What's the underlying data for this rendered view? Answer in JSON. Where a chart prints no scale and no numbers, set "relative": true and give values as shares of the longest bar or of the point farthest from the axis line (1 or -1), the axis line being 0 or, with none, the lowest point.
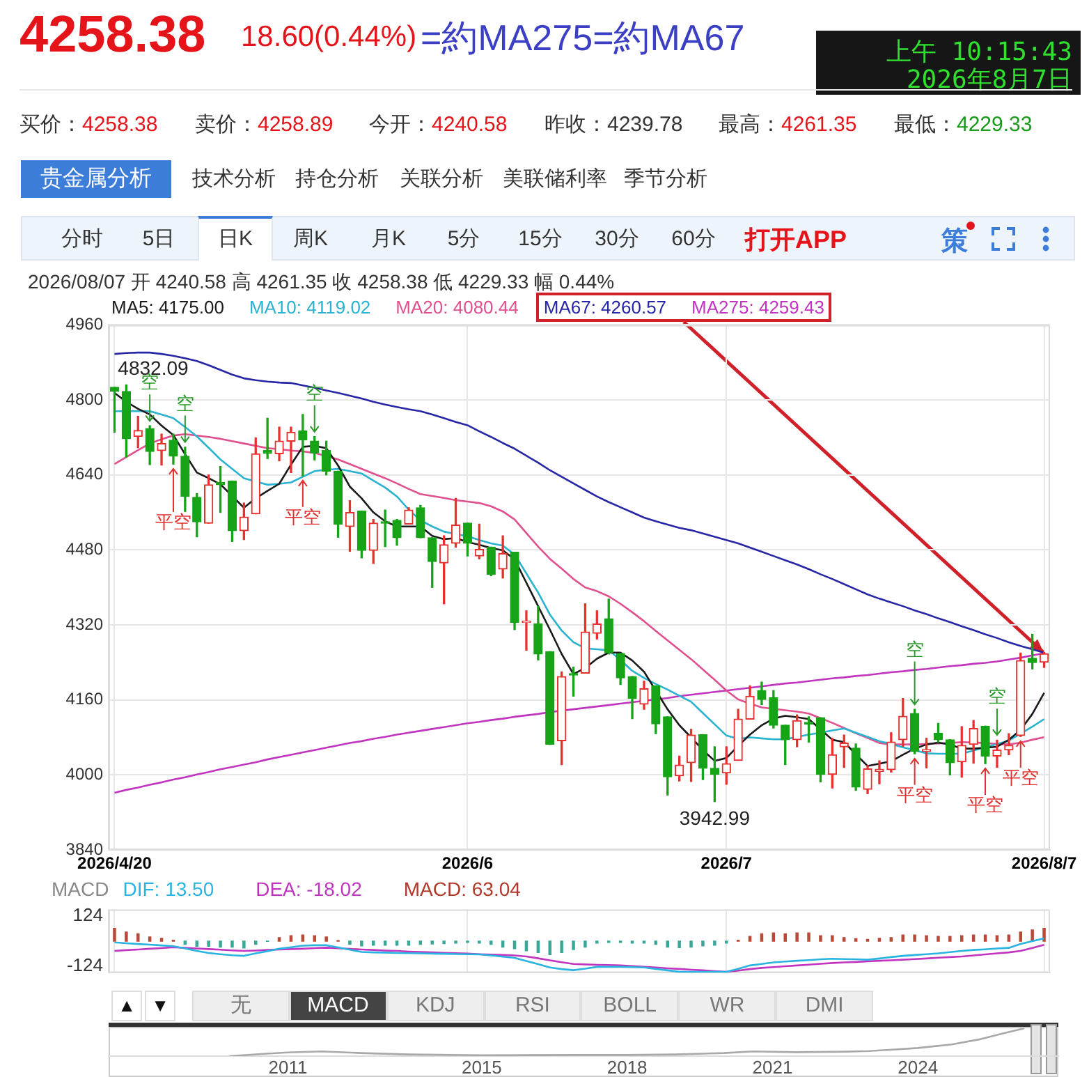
{
  "chart_data": [
    {
      "type": "other",
      "title": "4258.38",
      "subtitle": "18.60(0.44%)",
      "annotations": [
        "=約MA275=約MA67",
        "上午 10:15:43",
        "2026年8月7日",
        "买价：",
        "4258.38",
        "卖价：",
        "4258.89",
        "今开：",
        "4240.58",
        "昨收：",
        "4239.78",
        "最高：",
        "4261.35",
        "最低：",
        "4229.33",
        "贵金属分析",
        "技术分析",
        "持仓分析",
        "关联分析",
        "美联储利率",
        "季节分析",
        "分时",
        "5日",
        "日K",
        "周K",
        "月K",
        "5分",
        "15分",
        "30分",
        "60分",
        "打开APP",
        "策"
      ]
    },
    {
      "type": "candlestick",
      "subtitle": "2026/08/07 开 4240.58 高 4261.35 收 4258.38 低 4229.33 幅 0.44%",
      "categories": [
        "2026/4/20",
        null,
        null,
        null,
        null,
        null,
        null,
        null,
        null,
        null,
        null,
        null,
        null,
        null,
        null,
        null,
        null,
        null,
        null,
        null,
        null,
        null,
        null,
        null,
        null,
        null,
        null,
        null,
        null,
        null,
        "2026/6",
        null,
        null,
        null,
        null,
        null,
        null,
        null,
        null,
        null,
        null,
        null,
        null,
        null,
        null,
        null,
        null,
        null,
        null,
        null,
        null,
        null,
        "2026/7",
        null,
        null,
        null,
        null,
        null,
        null,
        null,
        null,
        null,
        null,
        null,
        null,
        null,
        null,
        null,
        null,
        null,
        null,
        null,
        null,
        null,
        null,
        null,
        null,
        null,
        null,
        "2026/8/7"
      ],
      "ohlc": [
        [
          4827,
          4827,
          4731,
          4818
        ],
        [
          4818,
          4832.09,
          4678,
          4717
        ],
        [
          4722,
          4765,
          4698,
          4735
        ],
        [
          4739,
          4745,
          4662,
          4690
        ],
        [
          4692,
          4727,
          4661,
          4707
        ],
        [
          4714,
          4727,
          4663,
          4680
        ],
        [
          4680,
          4699,
          4562,
          4594
        ],
        [
          4592,
          4600,
          4508,
          4540
        ],
        [
          4537,
          4640,
          4537,
          4619
        ],
        [
          4624,
          4658,
          4560,
          4619
        ],
        [
          4627,
          4627,
          4498,
          4521
        ],
        [
          4521,
          4580,
          4502,
          4550
        ],
        [
          4557,
          4719,
          4557,
          4685
        ],
        [
          4692,
          4761,
          4675,
          4686
        ],
        [
          4685,
          4742,
          4670,
          4712
        ],
        [
          4712,
          4742,
          4645,
          4731
        ],
        [
          4734,
          4769,
          4638,
          4715
        ],
        [
          4712,
          4722,
          4672,
          4687
        ],
        [
          4692,
          4712,
          4640,
          4648
        ],
        [
          4648,
          4648,
          4507,
          4535
        ],
        [
          4530,
          4585,
          4477,
          4560
        ],
        [
          4563,
          4563,
          4463,
          4479
        ],
        [
          4479,
          4545,
          4451,
          4537
        ],
        [
          4540,
          4565,
          4487,
          4537
        ],
        [
          4543,
          4545,
          4490,
          4506
        ],
        [
          4535,
          4570,
          4535,
          4565
        ],
        [
          4570,
          4575,
          4506,
          4506
        ],
        [
          4506,
          4506,
          4400,
          4455
        ],
        [
          4452,
          4510,
          4365,
          4491
        ],
        [
          4494,
          4590,
          4486,
          4533
        ],
        [
          4537,
          4537,
          4467,
          4494
        ],
        [
          4467,
          4535,
          4461,
          4481
        ],
        [
          4486,
          4486,
          4425,
          4428
        ],
        [
          4439,
          4510,
          4420,
          4472
        ],
        [
          4475,
          4475,
          4310,
          4325
        ],
        [
          4325,
          4350,
          4266,
          4327
        ],
        [
          4322,
          4360,
          4245,
          4258
        ],
        [
          4263,
          4263,
          4065,
          4065
        ],
        [
          4073,
          4220,
          4022,
          4210
        ],
        [
          4215,
          4230,
          4168,
          4213
        ],
        [
          4217,
          4365,
          4217,
          4305
        ],
        [
          4302,
          4350,
          4290,
          4322
        ],
        [
          4333,
          4375,
          4258,
          4261
        ],
        [
          4259,
          4259,
          4193,
          4207
        ],
        [
          4210,
          4210,
          4120,
          4163
        ],
        [
          4151,
          4200,
          4140,
          4184
        ],
        [
          4190,
          4190,
          4088,
          4109
        ],
        [
          4124,
          4124,
          3957,
          3996
        ],
        [
          3998,
          4040,
          3987,
          4021
        ],
        [
          4026,
          4097,
          3986,
          4085
        ],
        [
          4086,
          4086,
          3990,
          4014
        ],
        [
          4014,
          4060,
          3942.99,
          4001
        ],
        [
          4004,
          4060,
          3980,
          4024
        ],
        [
          4031,
          4140,
          4031,
          4119
        ],
        [
          4119,
          4190,
          4119,
          4168
        ],
        [
          4180,
          4198,
          4150,
          4161
        ],
        [
          4165,
          4180,
          4100,
          4106
        ],
        [
          4106,
          4106,
          4022,
          4075
        ],
        [
          4075,
          4128,
          4060,
          4116
        ],
        [
          4112,
          4124,
          4070,
          4108
        ],
        [
          4122,
          4122,
          3985,
          4001
        ],
        [
          4001,
          4078,
          3972,
          4043
        ],
        [
          4060,
          4085,
          4016,
          4068
        ],
        [
          4057,
          4066,
          3967,
          3974
        ],
        [
          3969,
          4020,
          3960,
          4013
        ],
        [
          4007,
          4030,
          3981,
          4012
        ],
        [
          4011,
          4090,
          4006,
          4070
        ],
        [
          4075,
          4163,
          4061,
          4125
        ],
        [
          4131,
          4140,
          4045,
          4050
        ],
        [
          4050,
          4078,
          4015,
          4054
        ],
        [
          4089,
          4110,
          4070,
          4075
        ],
        [
          4075,
          4075,
          4000,
          4026
        ],
        [
          4028,
          4103,
          3995,
          4063
        ],
        [
          4065,
          4116,
          4025,
          4099
        ],
        [
          4104,
          4104,
          4024,
          4040
        ],
        [
          4040,
          4074,
          4016,
          4053
        ],
        [
          4053,
          4088,
          4043,
          4063
        ],
        [
          4084,
          4260,
          4082,
          4244
        ],
        [
          4249,
          4300,
          4226,
          4239.78
        ],
        [
          4240.58,
          4261.35,
          4229.33,
          4258.38
        ]
      ],
      "colors": [
        "#17a317",
        "#17a317",
        "#e8312f",
        "#17a317",
        "#e8312f",
        "#17a317",
        "#17a317",
        "#17a317",
        "#e8312f",
        "#17a317",
        "#17a317",
        "#e8312f",
        "#e8312f",
        "#17a317",
        "#e8312f",
        "#e8312f",
        "#17a317",
        "#17a317",
        "#17a317",
        "#17a317",
        "#e8312f",
        "#17a317",
        "#e8312f",
        "#17a317",
        "#17a317",
        "#e8312f",
        "#17a317",
        "#17a317",
        "#e8312f",
        "#e8312f",
        "#17a317",
        "#e8312f",
        "#17a317",
        "#e8312f",
        "#17a317",
        "#e8312f",
        "#17a317",
        "#17a317",
        "#e8312f",
        "#17a317",
        "#e8312f",
        "#e8312f",
        "#17a317",
        "#17a317",
        "#17a317",
        "#e8312f",
        "#17a317",
        "#17a317",
        "#e8312f",
        "#e8312f",
        "#17a317",
        "#17a317",
        "#e8312f",
        "#e8312f",
        "#e8312f",
        "#17a317",
        "#17a317",
        "#17a317",
        "#e8312f",
        "#17a317",
        "#17a317",
        "#e8312f",
        "#e8312f",
        "#17a317",
        "#e8312f",
        "#e8312f",
        "#e8312f",
        "#e8312f",
        "#17a317",
        "#e8312f",
        "#17a317",
        "#17a317",
        "#e8312f",
        "#e8312f",
        "#17a317",
        "#e8312f",
        "#e8312f",
        "#e8312f",
        "#17a317",
        "#e8312f"
      ],
      "series": [
        {
          "name": "MA5: 4175.00",
          "type": "line",
          "color": "#1a1a1a",
          "values": [
            4815,
            4796,
            4781,
            4769,
            4745,
            4725,
            4684,
            4645,
            4633,
            4620,
            4595,
            4570,
            4590,
            4606,
            4621,
            4662,
            4700,
            4702,
            4697,
            4660,
            4615,
            4590,
            4560,
            4541,
            4530,
            4530,
            4530,
            4510,
            4503,
            4505,
            4497,
            4491,
            4484,
            4479,
            4460,
            4410,
            4360,
            4310,
            4258,
            4215,
            4228,
            4248,
            4261,
            4261,
            4244,
            4220,
            4180,
            4140,
            4106,
            4080,
            4053,
            4030,
            4036,
            4062,
            4086,
            4106,
            4120,
            4126,
            4123,
            4119,
            4097,
            4075,
            4070,
            4044,
            4019,
            4024,
            4029,
            4043,
            4056,
            4065,
            4069,
            4065,
            4056,
            4056,
            4058,
            4060,
            4075,
            4096,
            4130,
            4175.0
          ]
        },
        {
          "name": "MA10: 4119.02",
          "type": "line",
          "color": "#29b3d1",
          "values": [
            4776,
            4776,
            4776,
            4776,
            4769,
            4761,
            4742,
            4722,
            4698,
            4673,
            4653,
            4633,
            4626,
            4619,
            4621,
            4624,
            4636,
            4648,
            4651,
            4653,
            4648,
            4643,
            4628,
            4613,
            4594,
            4566,
            4543,
            4530,
            4519,
            4514,
            4509,
            4501,
            4494,
            4489,
            4470,
            4430,
            4389,
            4342,
            4308,
            4283,
            4270,
            4268,
            4266,
            4245,
            4222,
            4207,
            4194,
            4182,
            4169,
            4156,
            4132,
            4108,
            4084,
            4077,
            4080,
            4078,
            4076,
            4076,
            4081,
            4086,
            4090,
            4095,
            4099,
            4090,
            4081,
            4072,
            4066,
            4059,
            4053,
            4046,
            4045,
            4045,
            4045,
            4052,
            4059,
            4066,
            4073,
            4088,
            4103,
            4119.02
          ]
        },
        {
          "name": "MA20: 4080.44",
          "type": "line",
          "color": "#e0508e",
          "values": [
            4663,
            4678,
            4693,
            4707,
            4716,
            4724,
            4727,
            4724,
            4721,
            4717,
            4712,
            4707,
            4702,
            4697,
            4695,
            4692,
            4690,
            4687,
            4680,
            4673,
            4663,
            4653,
            4643,
            4633,
            4622,
            4610,
            4599,
            4595,
            4591,
            4586,
            4583,
            4580,
            4573,
            4562,
            4545,
            4516,
            4487,
            4461,
            4440,
            4418,
            4400,
            4392,
            4381,
            4365,
            4347,
            4328,
            4307,
            4287,
            4267,
            4247,
            4225,
            4203,
            4180,
            4161,
            4152,
            4144,
            4141,
            4138,
            4135,
            4131,
            4121,
            4111,
            4100,
            4089,
            4079,
            4068,
            4065,
            4065,
            4065,
            4066,
            4067,
            4068,
            4070,
            4069,
            4068,
            4066,
            4065,
            4069,
            4075,
            4080.44
          ]
        },
        {
          "name": "MA67: 4260.57",
          "type": "line",
          "color": "#2626a6",
          "values": [
            4898,
            4900,
            4901,
            4901,
            4898,
            4894,
            4889,
            4883,
            4874,
            4864,
            4854,
            4846,
            4842,
            4839,
            4837,
            4836,
            4831,
            4826,
            4820,
            4815,
            4809,
            4803,
            4796,
            4790,
            4785,
            4780,
            4776,
            4769,
            4761,
            4753,
            4746,
            4733,
            4721,
            4708,
            4696,
            4681,
            4666,
            4650,
            4636,
            4622,
            4608,
            4594,
            4582,
            4571,
            4560,
            4549,
            4541,
            4534,
            4527,
            4522,
            4515,
            4508,
            4501,
            4494,
            4485,
            4476,
            4467,
            4458,
            4449,
            4439,
            4428,
            4418,
            4407,
            4396,
            4385,
            4376,
            4368,
            4360,
            4351,
            4343,
            4334,
            4326,
            4317,
            4309,
            4300,
            4292,
            4283,
            4275,
            4268,
            4260.57
          ]
        },
        {
          "name": "MA275: 4259.43",
          "type": "line",
          "color": "#c034c0",
          "values": [
            3962,
            3968,
            3973,
            3979,
            3984,
            3990,
            3995,
            4001,
            4006,
            4012,
            4017,
            4022,
            4027,
            4033,
            4038,
            4043,
            4048,
            4053,
            4058,
            4063,
            4068,
            4072,
            4077,
            4081,
            4086,
            4090,
            4094,
            4098,
            4102,
            4106,
            4110,
            4113,
            4117,
            4120,
            4124,
            4127,
            4130,
            4134,
            4137,
            4140,
            4143,
            4146,
            4149,
            4152,
            4155,
            4158,
            4161,
            4164,
            4168,
            4171,
            4174,
            4177,
            4180,
            4183,
            4186,
            4189,
            4192,
            4195,
            4197,
            4200,
            4203,
            4206,
            4208,
            4211,
            4213,
            4216,
            4219,
            4221,
            4224,
            4226,
            4229,
            4232,
            4234,
            4237,
            4239,
            4242,
            4246,
            4250,
            4255,
            4259.43
          ]
        }
      ],
      "ylim": [
        3840,
        4960
      ],
      "yticks": [
        3840,
        4000,
        4160,
        4320,
        4480,
        4640,
        4800,
        4960
      ],
      "grid": true,
      "legend": "top left",
      "marker": "none",
      "annotations": [
        "4832.09",
        {
          "text": "3942.99",
          "y": 3942.99
        },
        {
          "text": "空",
          "y": 4755
        },
        {
          "text": "空",
          "y": 4710
        },
        {
          "text": "空",
          "y": 4732
        },
        {
          "text": "空",
          "y": 4150
        },
        {
          "text": "空",
          "y": 4085
        },
        {
          "text": "平空",
          "y": 4653
        },
        {
          "text": "平空",
          "y": 4628
        },
        {
          "text": "平空",
          "y": 4035
        },
        {
          "text": "平空",
          "y": 4014
        },
        {
          "text": "平空",
          "y": 4072
        }
      ]
    },
    {
      "type": "bar",
      "legend_title": "MACD",
      "categories": [
        "2026/4/20",
        null,
        null,
        null,
        null,
        null,
        null,
        null,
        null,
        null,
        null,
        null,
        null,
        null,
        null,
        null,
        null,
        null,
        null,
        null,
        null,
        null,
        null,
        null,
        null,
        null,
        null,
        null,
        null,
        null,
        "2026/6",
        null,
        null,
        null,
        null,
        null,
        null,
        null,
        null,
        null,
        null,
        null,
        null,
        null,
        null,
        null,
        null,
        null,
        null,
        null,
        null,
        null,
        "2026/7",
        null,
        null,
        null,
        null,
        null,
        null,
        null,
        null,
        null,
        null,
        null,
        null,
        null,
        null,
        null,
        null,
        null,
        null,
        null,
        null,
        null,
        null,
        null,
        null,
        null,
        null,
        "2026/8/7"
      ],
      "series": [
        {
          "name": "DIF: 13.50",
          "type": "line",
          "color": "#29b3e0",
          "values": [
            -6,
            -10,
            -14,
            -17,
            -21,
            -25,
            -36,
            -48,
            -58,
            -64,
            -69,
            -72,
            -60,
            -49,
            -37,
            -30,
            -22,
            -20,
            -20,
            -31,
            -42,
            -53,
            -55,
            -56,
            -58,
            -59,
            -60,
            -61,
            -62,
            -63,
            -64,
            -65,
            -70,
            -76,
            -82,
            -97,
            -113,
            -129,
            -137,
            -142,
            -135,
            -126,
            -126,
            -126,
            -127,
            -129,
            -136,
            -143,
            -150,
            -150,
            -150,
            -150,
            -150,
            -136,
            -119,
            -112,
            -104,
            -100,
            -96,
            -93,
            -89,
            -86,
            -88,
            -89,
            -91,
            -85,
            -78,
            -72,
            -68,
            -64,
            -60,
            -54,
            -48,
            -43,
            -40,
            -36,
            -33,
            -14,
            0,
            13.5
          ]
        },
        {
          "name": "DEA: -18.02",
          "type": "line",
          "color": "#c034c0",
          "values": [
            -48,
            -44,
            -41,
            -37,
            -34,
            -30,
            -33,
            -36,
            -39,
            -42,
            -45,
            -48,
            -46,
            -43,
            -41,
            -39,
            -37,
            -34,
            -32,
            -35,
            -38,
            -41,
            -43,
            -46,
            -48,
            -51,
            -53,
            -55,
            -57,
            -59,
            -61,
            -64,
            -66,
            -68,
            -70,
            -75,
            -84,
            -94,
            -103,
            -112,
            -114,
            -116,
            -117,
            -119,
            -122,
            -126,
            -129,
            -133,
            -136,
            -140,
            -143,
            -147,
            -150,
            -144,
            -137,
            -131,
            -127,
            -123,
            -119,
            -115,
            -111,
            -107,
            -104,
            -102,
            -99,
            -96,
            -94,
            -91,
            -88,
            -85,
            -81,
            -78,
            -75,
            -70,
            -65,
            -60,
            -55,
            -48,
            -33,
            -18.02
          ]
        },
        {
          "name": "MACD: 63.04",
          "type": "bar",
          "color": "#b23a2a",
          "values": [
            63,
            45,
            36,
            21,
            14,
            5,
            -16,
            -25,
            -25,
            -29,
            -29,
            -34,
            -16,
            -1,
            17,
            27,
            30,
            27,
            21,
            3,
            -16,
            -23,
            -20,
            -20,
            -20,
            -20,
            -16,
            -14,
            -12,
            -10,
            -6,
            -10,
            -16,
            -29,
            -37,
            -47,
            -56,
            -66,
            -56,
            -41,
            -29,
            -10,
            -6,
            -6,
            -10,
            -10,
            -16,
            -29,
            -32,
            -29,
            -23,
            -20,
            -10,
            5,
            23,
            36,
            40,
            36,
            40,
            40,
            27,
            27,
            17,
            12,
            9,
            14,
            17,
            30,
            30,
            27,
            23,
            23,
            27,
            30,
            30,
            27,
            30,
            45,
            55,
            63.04
          ],
          "colors": [
            "#b84a3a",
            "#b84a3a",
            "#b84a3a",
            "#b84a3a",
            "#b84a3a",
            "#b84a3a",
            "#3aa898",
            "#3aa898",
            "#3aa898",
            "#3aa898",
            "#3aa898",
            "#3aa898",
            "#3aa898",
            "#3aa898",
            "#b84a3a",
            "#b84a3a",
            "#b84a3a",
            "#b84a3a",
            "#b84a3a",
            "#b84a3a",
            "#3aa898",
            "#3aa898",
            "#3aa898",
            "#3aa898",
            "#3aa898",
            "#3aa898",
            "#3aa898",
            "#3aa898",
            "#3aa898",
            "#3aa898",
            "#3aa898",
            "#3aa898",
            "#3aa898",
            "#3aa898",
            "#3aa898",
            "#3aa898",
            "#3aa898",
            "#3aa898",
            "#3aa898",
            "#3aa898",
            "#3aa898",
            "#3aa898",
            "#3aa898",
            "#3aa898",
            "#3aa898",
            "#3aa898",
            "#3aa898",
            "#3aa898",
            "#3aa898",
            "#3aa898",
            "#3aa898",
            "#3aa898",
            "#3aa898",
            "#b84a3a",
            "#b84a3a",
            "#b84a3a",
            "#b84a3a",
            "#b84a3a",
            "#b84a3a",
            "#b84a3a",
            "#b84a3a",
            "#b84a3a",
            "#b84a3a",
            "#b84a3a",
            "#b84a3a",
            "#b84a3a",
            "#b84a3a",
            "#b84a3a",
            "#b84a3a",
            "#b84a3a",
            "#b84a3a",
            "#b84a3a",
            "#b84a3a",
            "#b84a3a",
            "#b84a3a",
            "#b84a3a",
            "#b84a3a",
            "#b84a3a",
            "#b84a3a",
            "#b84a3a"
          ]
        }
      ],
      "ylim": [
        -155,
        155
      ],
      "yticks": [
        124,
        -124
      ],
      "grid": "x",
      "tick_labels": "y",
      "legend": "top left",
      "marker": "none"
    },
    {
      "type": "other",
      "annotations": [
        "▲",
        "▼",
        "无",
        "MACD",
        "KDJ",
        "RSI",
        "BOLL",
        "WR",
        "DMI"
      ]
    },
    {
      "type": "line",
      "relative": true,
      "x": [
        2009.8,
        2010.5,
        2011,
        2011.7,
        2012.5,
        2013.5,
        2015,
        2017,
        2018,
        2019,
        2020,
        2020.6,
        2021.5,
        2022.5,
        2023,
        2024,
        2024.7,
        2025.3,
        2025.8,
        2026.2
      ],
      "series": [
        {
          "color": "#a8a8a8",
          "values": [
            0,
            0.08,
            0.13,
            0.17,
            0.11,
            0.06,
            0.03,
            0.04,
            0.04,
            0.06,
            0.11,
            0.17,
            0.14,
            0.16,
            0.18,
            0.29,
            0.42,
            0.61,
            0.83,
            1
          ]
        }
      ],
      "xlim": [
        2007.3,
        2026.9
      ],
      "xticks": [
        2011,
        2015,
        2018,
        2021,
        2024
      ],
      "marker": "none"
    }
  ]
}
